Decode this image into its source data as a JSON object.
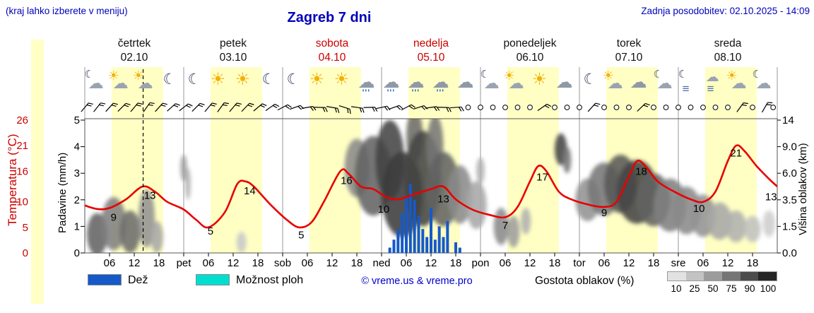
{
  "header": {
    "menu_note": "(kraj lahko izberete v meniju)",
    "title": "Zagreb 7 dni",
    "last_update": "Zadnja posodobitev: 02.10.2025 - 14:09"
  },
  "axes": {
    "temperature": {
      "label": "Temperatura (°C)",
      "tick_values": [
        26,
        21,
        16,
        10,
        5,
        0
      ],
      "color": "#cc0000"
    },
    "precipitation": {
      "label": "Padavine (mm/h)",
      "tick_values": [
        5,
        4,
        3,
        2,
        1,
        0
      ]
    },
    "cloud_height": {
      "label": "Višina oblakov (km)",
      "tick_labels": [
        "14",
        "9.0",
        "6.0",
        "3.5",
        "1.5",
        "0.0"
      ]
    }
  },
  "days": [
    {
      "name": "četrtek",
      "date": "02.10",
      "red": false
    },
    {
      "name": "petek",
      "date": "03.10",
      "red": false
    },
    {
      "name": "sobota",
      "date": "04.10",
      "red": true
    },
    {
      "name": "nedelja",
      "date": "05.10",
      "red": true
    },
    {
      "name": "ponedeljek",
      "date": "06.10",
      "red": false
    },
    {
      "name": "torek",
      "date": "07.10",
      "red": false
    },
    {
      "name": "sreda",
      "date": "08.10",
      "red": false
    }
  ],
  "x_axis": {
    "hour_labels": [
      "06",
      "12",
      "18"
    ],
    "boundary_labels": [
      "pet",
      "sob",
      "ned",
      "pon",
      "tor",
      "sre"
    ]
  },
  "legend": {
    "rain": "Dež",
    "showers": "Možnost ploh",
    "credit": "© vreme.us & vreme.pro",
    "cloud_density": "Gostota oblakov (%)",
    "cloud_scale_labels": [
      "10",
      "25",
      "50",
      "75",
      "90",
      "100"
    ],
    "cloud_scale_shades": [
      "#e2e2e2",
      "#c3c3c3",
      "#9c9c9c",
      "#757575",
      "#4c4c4c",
      "#252525"
    ]
  },
  "colors": {
    "header_blue": "#0000bb",
    "red": "#cc0000",
    "temp_curve": "#e80000",
    "rain_bar": "#1659c8",
    "showers_swatch": "#00dfcf",
    "daylight_band": "#ffffc4",
    "day_separator": "#9a9a9a"
  },
  "chart_data": {
    "type": "line",
    "title": "Zagreb 7 dni",
    "x_unit": "hours from 02.10 00:00",
    "x_range": [
      0,
      168
    ],
    "temp_axis_range": [
      0,
      26
    ],
    "precip_axis_range": [
      0,
      5
    ],
    "cloud_axis_km_ticks": [
      0,
      1.5,
      3.5,
      6.0,
      9.0,
      14
    ],
    "daylight_hours": [
      6.5,
      19
    ],
    "now_hour": 14.15,
    "temperature_c": [
      [
        0,
        9.3
      ],
      [
        3,
        8.6
      ],
      [
        6,
        8.8
      ],
      [
        10,
        10.5
      ],
      [
        14,
        13
      ],
      [
        17,
        12
      ],
      [
        20,
        10
      ],
      [
        24,
        8.5
      ],
      [
        27,
        6.5
      ],
      [
        30,
        5
      ],
      [
        34,
        8
      ],
      [
        37,
        13.5
      ],
      [
        39,
        14
      ],
      [
        41,
        13
      ],
      [
        45,
        9.5
      ],
      [
        49,
        6.5
      ],
      [
        52,
        5
      ],
      [
        55,
        6
      ],
      [
        58,
        10
      ],
      [
        62,
        16
      ],
      [
        64,
        15.5
      ],
      [
        67,
        13
      ],
      [
        70,
        12.5
      ],
      [
        73,
        11
      ],
      [
        76,
        10.5
      ],
      [
        80,
        11.5
      ],
      [
        84,
        12.5
      ],
      [
        87,
        13
      ],
      [
        90,
        10.5
      ],
      [
        94,
        8.5
      ],
      [
        98,
        7.5
      ],
      [
        102,
        7
      ],
      [
        105,
        9
      ],
      [
        108,
        14
      ],
      [
        110,
        17
      ],
      [
        112,
        16
      ],
      [
        115,
        12
      ],
      [
        118,
        10.5
      ],
      [
        122,
        9.5
      ],
      [
        126,
        9
      ],
      [
        129,
        10
      ],
      [
        132,
        15
      ],
      [
        134,
        18
      ],
      [
        136,
        17
      ],
      [
        139,
        14
      ],
      [
        143,
        12
      ],
      [
        147,
        10.5
      ],
      [
        150,
        10
      ],
      [
        153,
        12
      ],
      [
        156,
        18
      ],
      [
        158,
        21
      ],
      [
        160,
        20
      ],
      [
        163,
        17
      ],
      [
        166,
        14.5
      ],
      [
        168,
        13
      ]
    ],
    "temp_point_labels": [
      [
        7,
        7.0,
        "9"
      ],
      [
        15.8,
        11.3,
        "13"
      ],
      [
        30.5,
        4.3,
        "5"
      ],
      [
        40,
        12.2,
        "14"
      ],
      [
        52.5,
        3.5,
        "5"
      ],
      [
        63.5,
        14.2,
        "16"
      ],
      [
        72.5,
        8.6,
        "10"
      ],
      [
        87,
        10.6,
        "13"
      ],
      [
        102,
        5.4,
        "7"
      ],
      [
        111,
        14.9,
        "17"
      ],
      [
        126,
        7.9,
        "9"
      ],
      [
        135,
        16.0,
        "18"
      ],
      [
        149,
        8.7,
        "10"
      ],
      [
        158,
        19.6,
        "21"
      ],
      [
        166.5,
        11.0,
        "13"
      ]
    ],
    "precip_mm_h": [
      [
        74,
        0.2
      ],
      [
        75,
        0.5
      ],
      [
        76,
        0.9
      ],
      [
        77,
        1.5
      ],
      [
        78,
        2.1
      ],
      [
        79,
        2.6
      ],
      [
        80,
        2.0
      ],
      [
        81,
        1.4
      ],
      [
        82,
        0.9
      ],
      [
        83,
        0.6
      ],
      [
        84,
        1.7
      ],
      [
        85,
        0.5
      ],
      [
        86,
        1.0
      ],
      [
        87,
        0.6
      ],
      [
        88,
        1.2
      ],
      [
        90,
        0.4
      ],
      [
        91,
        0.2
      ]
    ],
    "cloud_blobs": [
      [
        3,
        0.7,
        2.5,
        0.8,
        0.7
      ],
      [
        7,
        1.1,
        3,
        1.0,
        0.55
      ],
      [
        11,
        0.8,
        2.5,
        0.8,
        0.65
      ],
      [
        15,
        1.3,
        2,
        1.1,
        0.45
      ],
      [
        17.5,
        0.6,
        1.5,
        0.6,
        0.35
      ],
      [
        24,
        3.2,
        0.8,
        0.5,
        0.4
      ],
      [
        25,
        2.6,
        0.7,
        0.6,
        0.3
      ],
      [
        38,
        0.4,
        1.2,
        0.4,
        0.18
      ],
      [
        66,
        3.2,
        3,
        1.1,
        0.5
      ],
      [
        70,
        2.9,
        4.5,
        1.5,
        0.7
      ],
      [
        74,
        3.5,
        3.5,
        1.5,
        0.85
      ],
      [
        77,
        2.2,
        5,
        1.6,
        0.9
      ],
      [
        80,
        4.4,
        2,
        1.0,
        0.65
      ],
      [
        82,
        2.8,
        4.5,
        1.8,
        0.85
      ],
      [
        85,
        4.0,
        2,
        1.2,
        0.6
      ],
      [
        87,
        2.4,
        4,
        1.4,
        0.7
      ],
      [
        91,
        2.2,
        3,
        1.1,
        0.5
      ],
      [
        95,
        1.8,
        2.5,
        0.9,
        0.35
      ],
      [
        96,
        3.1,
        1,
        0.5,
        0.3
      ],
      [
        101,
        1.0,
        1.8,
        0.7,
        0.5
      ],
      [
        104,
        0.8,
        1.5,
        0.6,
        0.4
      ],
      [
        107,
        1.2,
        1.2,
        0.5,
        0.3
      ],
      [
        115.5,
        3.9,
        1.5,
        0.6,
        0.85
      ],
      [
        117,
        3.5,
        1,
        0.5,
        0.6
      ],
      [
        122,
        2.0,
        3,
        0.8,
        0.45
      ],
      [
        126,
        2.4,
        4,
        1.0,
        0.6
      ],
      [
        130,
        2.6,
        4,
        1.1,
        0.75
      ],
      [
        134,
        2.3,
        5,
        1.2,
        0.85
      ],
      [
        138,
        2.0,
        4,
        1.0,
        0.7
      ],
      [
        142,
        1.8,
        4,
        1.0,
        0.55
      ],
      [
        146,
        1.6,
        3.5,
        0.9,
        0.5
      ],
      [
        150,
        1.4,
        3,
        0.8,
        0.45
      ],
      [
        154,
        1.2,
        3,
        0.7,
        0.35
      ],
      [
        158,
        1.0,
        2.5,
        0.6,
        0.3
      ],
      [
        162,
        0.9,
        2,
        0.5,
        0.22
      ],
      [
        166,
        1.1,
        1.5,
        0.5,
        0.15
      ]
    ],
    "weather_icons": [
      "moon-cloud",
      "sun-cloud",
      "sun-cloud",
      "moon",
      "moon",
      "sun",
      "sun",
      "moon",
      "moon",
      "sun",
      "sun",
      "rain",
      "rain",
      "rain",
      "rain",
      "cloud",
      "moon-cloud",
      "sun-cloud",
      "sun",
      "cloud",
      "moon",
      "sun-cloud",
      "cloud",
      "moon-cloud",
      "moon-fog",
      "fog",
      "sun-cloud",
      "moon-cloud"
    ],
    "wind_barbs": [
      [
        0,
        40
      ],
      [
        3,
        38
      ],
      [
        6,
        42
      ],
      [
        9,
        45
      ],
      [
        12,
        40
      ],
      [
        15,
        35
      ],
      [
        18,
        42
      ],
      [
        21,
        48
      ],
      [
        24,
        52
      ],
      [
        27,
        45
      ],
      [
        30,
        40
      ],
      [
        33,
        36
      ],
      [
        36,
        40
      ],
      [
        39,
        44
      ],
      [
        42,
        50
      ],
      [
        45,
        55
      ],
      [
        48,
        62
      ],
      [
        51,
        70
      ],
      [
        54,
        80
      ],
      [
        57,
        92
      ],
      [
        60,
        100
      ],
      [
        63,
        108
      ],
      [
        66,
        98
      ],
      [
        69,
        88
      ],
      [
        72,
        78
      ],
      [
        75,
        70
      ],
      [
        78,
        62
      ],
      [
        81,
        72
      ],
      [
        84,
        82
      ],
      [
        87,
        92
      ],
      [
        90,
        86
      ],
      [
        111,
        55
      ],
      [
        123,
        42
      ],
      [
        135,
        46
      ],
      [
        159,
        36
      ],
      [
        165,
        30
      ]
    ],
    "wind_calm_hours": [
      93,
      96,
      99,
      102,
      105,
      108,
      114,
      117,
      120,
      126,
      129,
      132,
      138,
      141,
      144,
      147,
      150,
      153,
      156,
      162,
      167
    ]
  }
}
